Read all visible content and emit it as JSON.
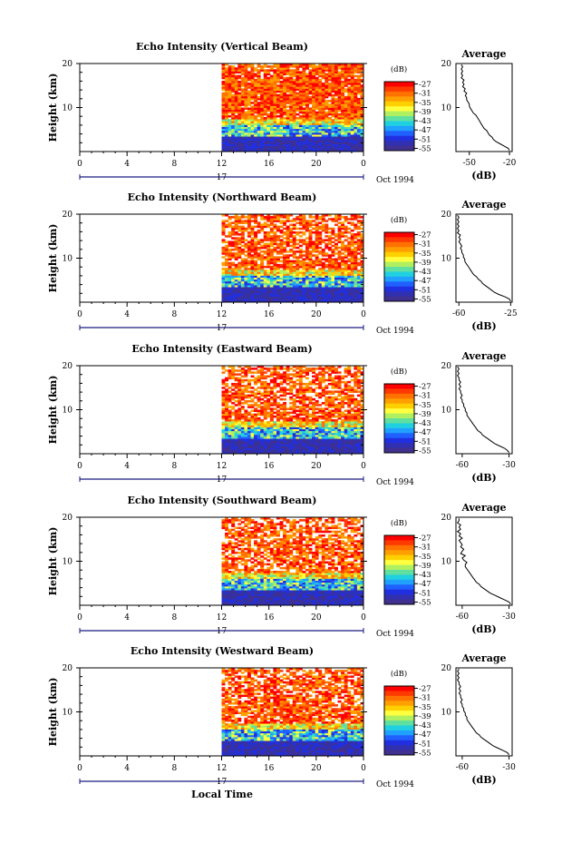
{
  "chart_data": {
    "type": "heatmap",
    "panels": [
      {
        "title": "Echo Intensity (Vertical Beam)",
        "avg_xlabel": "(dB)",
        "avg_xticks": [
          "-50",
          "-20"
        ],
        "avg_xlim": [
          -60,
          -18
        ],
        "profile_db": [
          -20,
          -21,
          -24,
          -27,
          -30,
          -32,
          -33,
          -35,
          -36,
          -37,
          -39,
          -40,
          -41,
          -42,
          -43,
          -44,
          -45,
          -47,
          -48,
          -49,
          -50,
          -50,
          -51,
          -52,
          -52,
          -53,
          -52,
          -54,
          -53,
          -55,
          -54,
          -55,
          -54,
          -56,
          -55,
          -56,
          -55,
          -56,
          -55,
          -56
        ]
      },
      {
        "title": "Echo Intensity (Northward Beam)",
        "avg_xlabel": "(dB)",
        "avg_xticks": [
          "-60",
          "-25"
        ],
        "avg_xlim": [
          -62,
          -24
        ],
        "profile_db": [
          -25,
          -26,
          -29,
          -33,
          -36,
          -38,
          -40,
          -42,
          -44,
          -45,
          -47,
          -48,
          -50,
          -51,
          -52,
          -53,
          -54,
          -55,
          -56,
          -56,
          -57,
          -57,
          -58,
          -58,
          -59,
          -58,
          -59,
          -60,
          -59,
          -60,
          -59,
          -61,
          -60,
          -61,
          -60,
          -61,
          -60,
          -61,
          -60,
          -61
        ]
      },
      {
        "title": "Echo Intensity (Eastward Beam)",
        "avg_xlabel": "(dB)",
        "avg_xticks": [
          "-60",
          "-30"
        ],
        "avg_xlim": [
          -64,
          -28
        ],
        "profile_db": [
          -30,
          -31,
          -33,
          -36,
          -39,
          -41,
          -43,
          -45,
          -47,
          -48,
          -50,
          -51,
          -52,
          -53,
          -54,
          -55,
          -56,
          -57,
          -57,
          -58,
          -58,
          -59,
          -59,
          -60,
          -60,
          -61,
          -60,
          -61,
          -61,
          -62,
          -61,
          -62,
          -61,
          -62,
          -62,
          -63,
          -62,
          -63,
          -62,
          -63
        ]
      },
      {
        "title": "Echo Intensity (Southward Beam)",
        "avg_xlabel": "(dB)",
        "avg_xticks": [
          "-60",
          "-30"
        ],
        "avg_xlim": [
          -64,
          -28
        ],
        "profile_db": [
          -29,
          -30,
          -33,
          -36,
          -39,
          -42,
          -44,
          -46,
          -48,
          -49,
          -51,
          -52,
          -53,
          -54,
          -55,
          -56,
          -57,
          -58,
          -58,
          -57,
          -59,
          -60,
          -58,
          -61,
          -60,
          -59,
          -61,
          -60,
          -61,
          -62,
          -60,
          -62,
          -61,
          -63,
          -61,
          -62,
          -61,
          -63,
          -62,
          -62
        ]
      },
      {
        "title": "Echo Intensity (Westward Beam)",
        "avg_xlabel": "(dB)",
        "avg_xticks": [
          "-60",
          "-30"
        ],
        "avg_xlim": [
          -64,
          -28
        ],
        "profile_db": [
          -30,
          -31,
          -34,
          -37,
          -40,
          -42,
          -44,
          -46,
          -48,
          -49,
          -51,
          -52,
          -53,
          -54,
          -55,
          -56,
          -57,
          -57,
          -58,
          -58,
          -59,
          -59,
          -60,
          -60,
          -61,
          -60,
          -61,
          -61,
          -62,
          -61,
          -62,
          -61,
          -62,
          -62,
          -63,
          -62,
          -63,
          -62,
          -63,
          -62
        ]
      }
    ],
    "ylabel": "Height (km)",
    "ylim": [
      0,
      20
    ],
    "yticks": [
      "20",
      "10"
    ],
    "xlim": [
      0,
      24
    ],
    "xticks": [
      "0",
      "4",
      "8",
      "12",
      "16",
      "20",
      "0"
    ],
    "day_label": "17",
    "date_label": "Oct 1994",
    "xlabel": "Local Time",
    "data_start_hour": 12,
    "colorbar": {
      "label": "(dB)",
      "ticks": [
        "-27",
        "-31",
        "-35",
        "-39",
        "-43",
        "-47",
        "-51",
        "-55"
      ],
      "range": [
        -56,
        -26
      ],
      "colors": [
        "#ff0000",
        "#ff3a00",
        "#ff7200",
        "#ffa000",
        "#ffd000",
        "#ffff40",
        "#b0f060",
        "#60e0a0",
        "#20d0e0",
        "#20a0ff",
        "#2060ff",
        "#2030e0",
        "#3030b0",
        "#403090"
      ]
    },
    "avg_title": "Average"
  }
}
